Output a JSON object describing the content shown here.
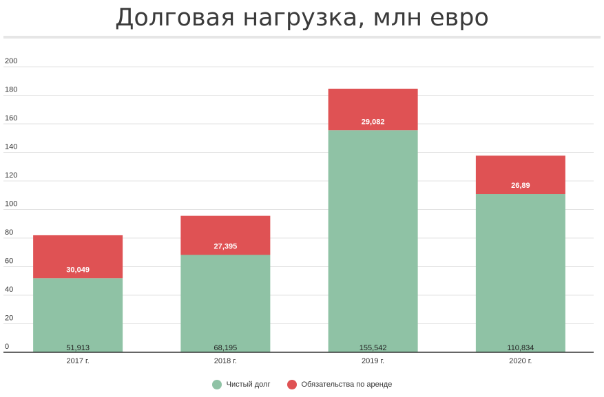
{
  "chart_data": {
    "type": "bar",
    "stacked": true,
    "title": "Долговая нагрузка, млн евро",
    "categories": [
      "2017 г.",
      "2018 г.",
      "2019 г.",
      "2020 г."
    ],
    "series": [
      {
        "name": "Чистый долг",
        "color": "#8fc2a5",
        "values": [
          51.913,
          68.195,
          155.542,
          110.834
        ],
        "labels": [
          "51,913",
          "68,195",
          "155,542",
          "110,834"
        ]
      },
      {
        "name": "Обязательства по аренде",
        "color": "#df5254",
        "values": [
          30.049,
          27.395,
          29.082,
          26.89
        ],
        "labels": [
          "30,049",
          "27,395",
          "29,082",
          "26,89"
        ]
      }
    ],
    "ylim": [
      0,
      200
    ],
    "yticks": [
      0,
      20,
      40,
      60,
      80,
      100,
      120,
      140,
      160,
      180,
      200
    ],
    "grid": true,
    "legend_position": "bottom"
  }
}
